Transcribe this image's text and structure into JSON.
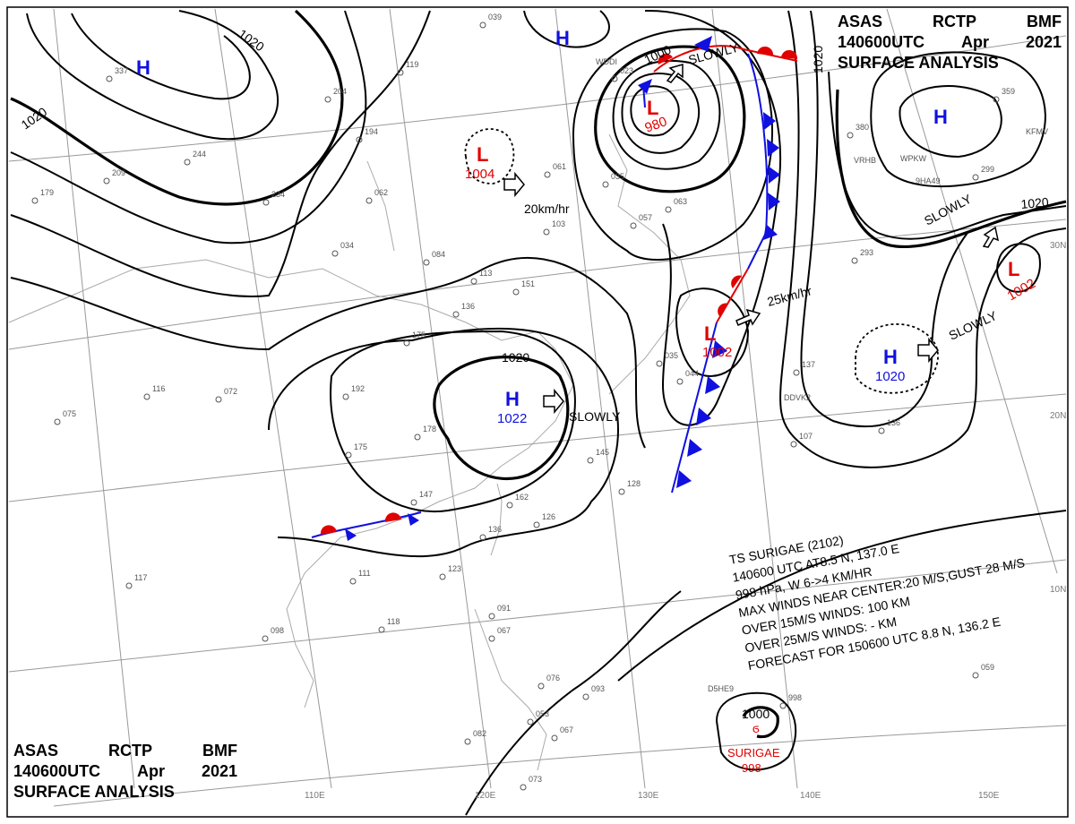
{
  "header": {
    "line1": [
      "ASAS",
      "RCTP",
      "BMF"
    ],
    "line2": [
      "140600UTC",
      "Apr",
      "2021"
    ],
    "line3": "SURFACE ANALYSIS"
  },
  "colors": {
    "high": "#1010e0",
    "low": "#e00000",
    "cold_front": "#1010e0",
    "warm_front": "#e00000",
    "isobar": "#000000",
    "grid": "#999999"
  },
  "highs": [
    {
      "symbol": "H",
      "value": ""
    },
    {
      "symbol": "H",
      "value": ""
    },
    {
      "symbol": "H",
      "value": ""
    },
    {
      "symbol": "H",
      "value": "1022"
    },
    {
      "symbol": "H",
      "value": "1020"
    }
  ],
  "lows": [
    {
      "symbol": "L",
      "value": "1004"
    },
    {
      "symbol": "L",
      "value": "980"
    },
    {
      "symbol": "L",
      "value": "1002"
    },
    {
      "symbol": "L",
      "value": "1002"
    }
  ],
  "movements": [
    "20km/hr",
    "SLOWLY",
    "SLOWLY",
    "25km/hr",
    "SLOWLY",
    "SLOWLY"
  ],
  "isobar_labels": [
    "1020",
    "1020",
    "1020",
    "1020",
    "1020",
    "1000",
    "1000"
  ],
  "lat_labels": [
    "30N",
    "20N",
    "10N"
  ],
  "lon_labels": [
    "110E",
    "120E",
    "130E",
    "140E",
    "150E"
  ],
  "typhoon": {
    "lines": [
      "TS SURIGAE (2102)",
      "140600 UTC AT8.5 N, 137.0 E",
      "998 hPa, W 6->4 KM/HR",
      "MAX WINDS NEAR CENTER:20 M/S,GUST 28 M/S",
      "OVER 15M/S WINDS: 100 KM",
      "OVER 25M/S WINDS: - KM",
      "FORECAST FOR 150600 UTC 8.8 N, 136.2 E"
    ],
    "name": "SURIGAE",
    "pressure": "998",
    "symbol": "tropical-storm-icon"
  },
  "stations": [
    "337",
    "244",
    "209",
    "179",
    "204",
    "194",
    "119",
    "062",
    "234",
    "034",
    "084",
    "039",
    "061",
    "103",
    "057",
    "035",
    "023",
    "063",
    "113",
    "151",
    "136",
    "175",
    "192",
    "116",
    "072",
    "075",
    "175",
    "178",
    "147",
    "162",
    "136",
    "111",
    "117",
    "098",
    "118",
    "145",
    "128",
    "126",
    "123",
    "091",
    "067",
    "076",
    "093",
    "082",
    "067",
    "073",
    "053",
    "107",
    "136",
    "137",
    "044",
    "035",
    "380",
    "359",
    "299",
    "293",
    "059",
    "998"
  ],
  "ship_ids": [
    "WDDI",
    "DDVK2",
    "D5HE9",
    "VRHB",
    "WPKW",
    "9HA49",
    "KFMV"
  ]
}
